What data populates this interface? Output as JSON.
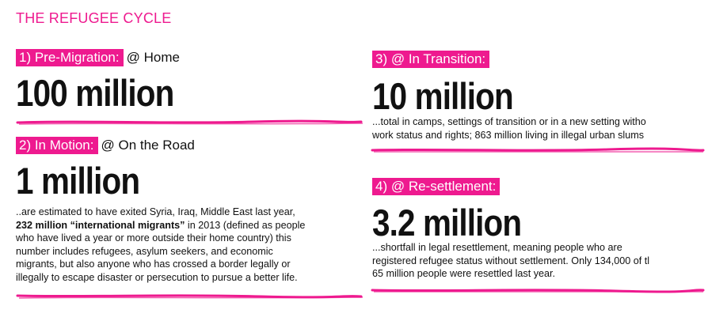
{
  "title": "THE REFUGEE CYCLE",
  "accent_color": "#ee1a8f",
  "sections": {
    "pre_migration": {
      "label": "1) Pre-Migration:",
      "suffix": "@ Home",
      "figure": "100 million"
    },
    "in_motion": {
      "label": "2) In Motion:",
      "suffix": "@ On the Road",
      "figure": "1 million",
      "body_line1": "..are estimated to have exited Syria, Iraq, Middle East last year,",
      "body_bold": "232 million “international migrants”",
      "body_line2_rest": " in 2013 (defined as people",
      "body_line3": "who have lived a year or more outside their home country) this",
      "body_line4": "number includes refugees, asylum seekers, and economic",
      "body_line5": "migrants, but also anyone who has crossed a border legally or",
      "body_line6": "illegally to escape disaster or persecution to pursue a better life."
    },
    "in_transition": {
      "label": "3) @ In Transition:",
      "figure": "10 million",
      "body_line1": "...total in camps, settings of transition or in a new setting witho",
      "body_line2": "work status and rights; 863 million living in illegal urban slums"
    },
    "resettlement": {
      "label": "4) @ Re-settlement:",
      "figure": "3.2 million",
      "body_line1": "...shortfall in legal resettlement, meaning people who are",
      "body_line2": "registered refugee status without settlement. Only 134,000 of tl",
      "body_line3": "65 million people were resettled last year."
    }
  }
}
